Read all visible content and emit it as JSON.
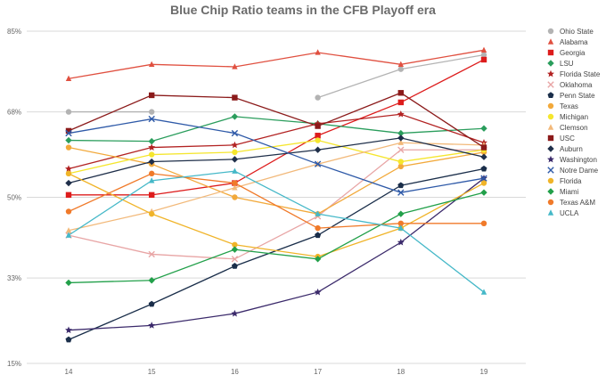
{
  "chart_data": {
    "type": "line",
    "title": "Blue Chip Ratio teams in the CFB Playoff era",
    "xlabel": "",
    "ylabel": "",
    "x": [
      "14",
      "15",
      "16",
      "17",
      "18",
      "19"
    ],
    "ylim": [
      15,
      85
    ],
    "yticks": [
      15,
      33,
      50,
      68,
      85
    ],
    "ytick_labels": [
      "15%",
      "33%",
      "50%",
      "68%",
      "85%"
    ],
    "grid": true,
    "legend_position": "right",
    "series": [
      {
        "name": "Ohio State",
        "color": "#b3b3b3",
        "marker": "circle",
        "values": [
          68,
          68,
          null,
          71,
          77,
          80
        ]
      },
      {
        "name": "Alabama",
        "color": "#e05040",
        "marker": "triangle",
        "values": [
          75,
          78,
          77.5,
          80.5,
          78,
          81
        ]
      },
      {
        "name": "Georgia",
        "color": "#dd1c1c",
        "marker": "square",
        "values": [
          50.5,
          50.5,
          53,
          63,
          70,
          79
        ]
      },
      {
        "name": "LSU",
        "color": "#2a9d5c",
        "marker": "diamond",
        "values": [
          62,
          61.8,
          67,
          65.5,
          63.5,
          64.5
        ]
      },
      {
        "name": "Florida State",
        "color": "#b22222",
        "marker": "star",
        "values": [
          56,
          60.5,
          61,
          65.5,
          67.5,
          61.5
        ]
      },
      {
        "name": "Oklahoma",
        "color": "#e8a5a5",
        "marker": "x",
        "values": [
          42,
          38,
          37,
          46,
          60,
          60
        ]
      },
      {
        "name": "Penn State",
        "color": "#1a2e4a",
        "marker": "pentagon",
        "values": [
          20,
          27.5,
          35.5,
          42,
          52.5,
          56
        ]
      },
      {
        "name": "Texas",
        "color": "#f2a93b",
        "marker": "circle",
        "values": [
          60.5,
          57,
          50,
          46.5,
          56.5,
          59.5
        ]
      },
      {
        "name": "Michigan",
        "color": "#f5e62e",
        "marker": "circle",
        "values": [
          55,
          59,
          59.5,
          62,
          57.5,
          60
        ]
      },
      {
        "name": "Clemson",
        "color": "#f2b97a",
        "marker": "triangle",
        "values": [
          43,
          47,
          52,
          57,
          61.5,
          61
        ]
      },
      {
        "name": "USC",
        "color": "#8b1a1a",
        "marker": "square",
        "values": [
          64,
          71.5,
          71,
          65,
          72,
          60.5
        ]
      },
      {
        "name": "Auburn",
        "color": "#1f2f4a",
        "marker": "diamond",
        "values": [
          53,
          57.5,
          58,
          60,
          62.5,
          58.5
        ]
      },
      {
        "name": "Washington",
        "color": "#3b2a6b",
        "marker": "star",
        "values": [
          22,
          23,
          25.5,
          30,
          40.5,
          54
        ]
      },
      {
        "name": "Notre Dame",
        "color": "#2f5aa8",
        "marker": "x",
        "values": [
          63.5,
          66.5,
          63.5,
          57,
          51,
          54
        ]
      },
      {
        "name": "Florida",
        "color": "#f0b429",
        "marker": "circle",
        "values": [
          55,
          46.5,
          40,
          37.5,
          43.5,
          53
        ]
      },
      {
        "name": "Miami",
        "color": "#22a04a",
        "marker": "diamond",
        "values": [
          32,
          32.5,
          39,
          37,
          46.5,
          51
        ]
      },
      {
        "name": "Texas A&M",
        "color": "#f07a2a",
        "marker": "circle",
        "values": [
          47,
          55,
          53,
          43.5,
          44.5,
          44.5
        ]
      },
      {
        "name": "UCLA",
        "color": "#45b8c8",
        "marker": "triangle",
        "values": [
          42,
          53.5,
          55.5,
          46.5,
          43.5,
          30
        ]
      }
    ]
  }
}
